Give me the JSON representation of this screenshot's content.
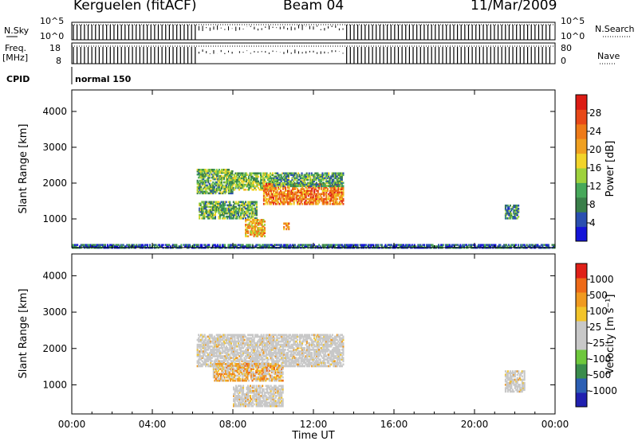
{
  "header": {
    "station": "Kerguelen (fitACF)",
    "beam": "Beam 04",
    "date": "11/Mar/2009"
  },
  "strip_labels": {
    "nsky": "N.Sky",
    "nsky_ticks": [
      "10^5",
      "10^0"
    ],
    "nsearch_ticks": [
      "10^5",
      "10^0"
    ],
    "nsearch": "N.Search",
    "freq": "Freq.",
    "freq_unit": "[MHz]",
    "freq_ticks": [
      "18",
      "8"
    ],
    "nave_ticks": [
      "80",
      "0"
    ],
    "nave": "Nave",
    "cpid": "CPID",
    "cpid_value": "normal 150"
  },
  "chart_data": [
    {
      "type": "heatmap",
      "name": "power",
      "ylabel": "Slant Range [km]",
      "yticks": [
        "1000",
        "2000",
        "3000",
        "4000"
      ],
      "ylim": [
        200,
        4600
      ],
      "xlim_hours": [
        0,
        24
      ],
      "colorbar": {
        "label": "Power [dB]",
        "ticks": [
          "4",
          "8",
          "12",
          "16",
          "20",
          "24",
          "28"
        ],
        "colors": [
          "#1414d8",
          "#2a4fb0",
          "#3a7f4a",
          "#47a85a",
          "#9ed23c",
          "#f2d42a",
          "#f0a020",
          "#ee7a18",
          "#e84818",
          "#dc1c14"
        ]
      },
      "patches": [
        {
          "t0": 6.2,
          "t1": 8.0,
          "r0": 1700,
          "r1": 2400,
          "level": 0.35
        },
        {
          "t0": 7.8,
          "t1": 10.0,
          "r0": 1800,
          "r1": 2300,
          "level": 0.4
        },
        {
          "t0": 9.5,
          "t1": 13.5,
          "r0": 1400,
          "r1": 2000,
          "level": 0.75
        },
        {
          "t0": 10.0,
          "t1": 13.5,
          "r0": 1900,
          "r1": 2300,
          "level": 0.3
        },
        {
          "t0": 6.3,
          "t1": 9.2,
          "r0": 1000,
          "r1": 1500,
          "level": 0.35
        },
        {
          "t0": 8.6,
          "t1": 9.6,
          "r0": 500,
          "r1": 1000,
          "level": 0.65
        },
        {
          "t0": 10.5,
          "t1": 10.8,
          "r0": 700,
          "r1": 900,
          "level": 0.7
        },
        {
          "t0": 21.5,
          "t1": 22.2,
          "r0": 1000,
          "r1": 1400,
          "level": 0.25
        },
        {
          "t0": 0.0,
          "t1": 24.0,
          "r0": 180,
          "r1": 300,
          "level": 0.15
        }
      ]
    },
    {
      "type": "heatmap",
      "name": "velocity",
      "xlabel": "Time UT",
      "ylabel": "Slant Range [km]",
      "yticks": [
        "1000",
        "2000",
        "3000",
        "4000"
      ],
      "xticks": [
        "00:00",
        "04:00",
        "08:00",
        "12:00",
        "16:00",
        "20:00",
        "00:00"
      ],
      "ylim": [
        200,
        4600
      ],
      "xlim_hours": [
        0,
        24
      ],
      "colorbar": {
        "label": "Velocity [m s⁻¹]",
        "ticks": [
          "1000",
          "500",
          "100",
          "25",
          "-25",
          "-100",
          "-500",
          "-1000"
        ],
        "colors": [
          "#2020b0",
          "#2c5fb4",
          "#3a8c4c",
          "#6ec83c",
          "#c8c8c8",
          "#c8c8c8",
          "#f2c42a",
          "#f09a20",
          "#ee6a18",
          "#e02018"
        ]
      },
      "patches": [
        {
          "t0": 6.2,
          "t1": 13.5,
          "r0": 1500,
          "r1": 2400,
          "level": "grey"
        },
        {
          "t0": 7.0,
          "t1": 10.5,
          "r0": 1100,
          "r1": 1600,
          "level": "orange"
        },
        {
          "t0": 8.0,
          "t1": 10.5,
          "r0": 400,
          "r1": 1000,
          "level": "grey"
        },
        {
          "t0": 21.5,
          "t1": 22.5,
          "r0": 800,
          "r1": 1400,
          "level": "grey"
        }
      ]
    }
  ]
}
